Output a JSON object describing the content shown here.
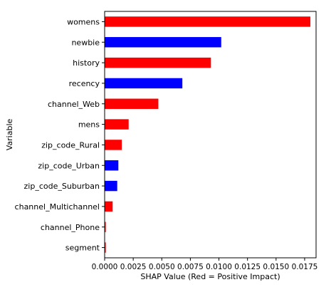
{
  "chart_data": {
    "type": "bar",
    "orientation": "horizontal",
    "title": "",
    "xlabel": "SHAP Value (Red = Positive Impact)",
    "ylabel": "Variable",
    "xlim": [
      0,
      0.0185
    ],
    "x_ticks": [
      0.0,
      0.0025,
      0.005,
      0.0075,
      0.01,
      0.0125,
      0.015,
      0.0175
    ],
    "x_tick_labels": [
      "0.0000",
      "0.0025",
      "0.0050",
      "0.0075",
      "0.0100",
      "0.0125",
      "0.0150",
      "0.0175"
    ],
    "grid": false,
    "colors": {
      "positive": "#ff0000",
      "negative": "#0000ff"
    },
    "categories": [
      "womens",
      "newbie",
      "history",
      "recency",
      "channel_Web",
      "mens",
      "zip_code_Rural",
      "zip_code_Urban",
      "zip_code_Suburban",
      "channel_Multichannel",
      "channel_Phone",
      "segment"
    ],
    "values": [
      0.018,
      0.0102,
      0.0093,
      0.0068,
      0.0047,
      0.0021,
      0.0015,
      0.0012,
      0.0011,
      0.0007,
      0.0001,
      0.0001
    ],
    "bar_colors": [
      "#ff0000",
      "#0000ff",
      "#ff0000",
      "#0000ff",
      "#ff0000",
      "#ff0000",
      "#ff0000",
      "#0000ff",
      "#0000ff",
      "#ff0000",
      "#ff0000",
      "#ff0000"
    ]
  }
}
